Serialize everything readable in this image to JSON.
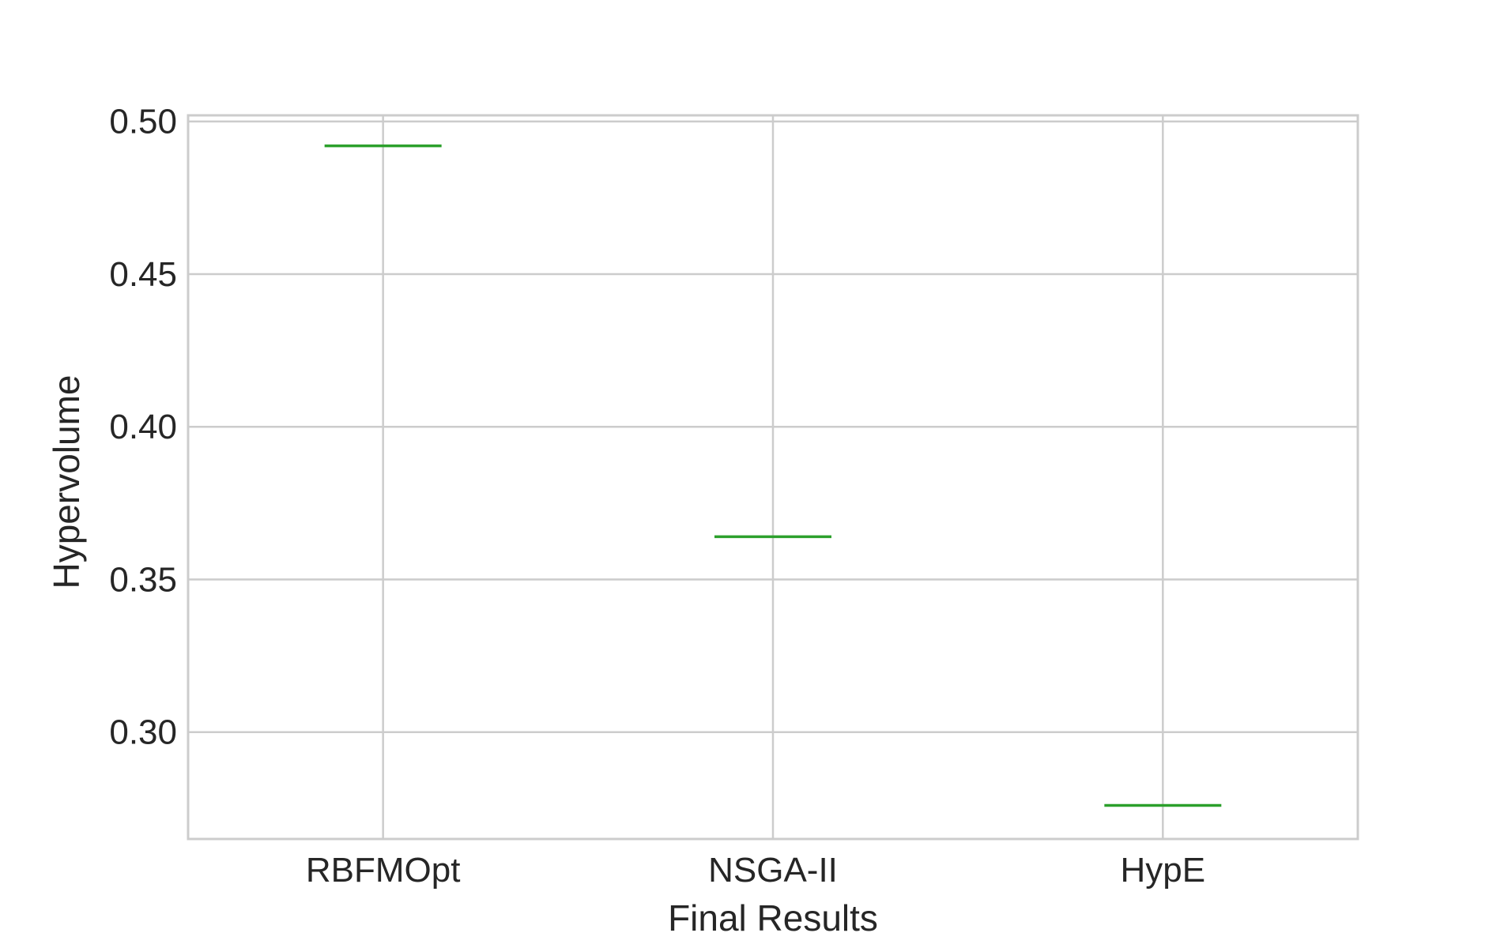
{
  "chart_data": {
    "type": "box",
    "title": "",
    "xlabel": "Final Results",
    "ylabel": "Hypervolume",
    "categories": [
      "RBFMOpt",
      "NSGA-II",
      "HypE"
    ],
    "values": [
      0.492,
      0.364,
      0.276
    ],
    "ylim": [
      0.265,
      0.502
    ],
    "yticks": [
      0.3,
      0.35,
      0.4,
      0.45,
      0.5
    ],
    "ytick_labels": [
      "0.30",
      "0.35",
      "0.40",
      "0.45",
      "0.50"
    ],
    "grid": true,
    "legend": "none",
    "colors": {
      "median": "#2ca02c",
      "grid": "#cccccc",
      "frame": "#cccccc",
      "text": "#262626"
    }
  }
}
